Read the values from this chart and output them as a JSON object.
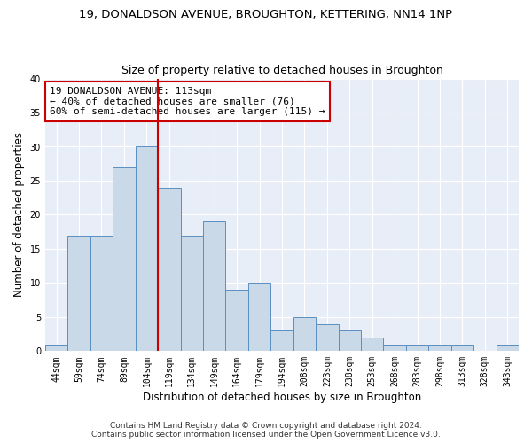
{
  "title": "19, DONALDSON AVENUE, BROUGHTON, KETTERING, NN14 1NP",
  "subtitle": "Size of property relative to detached houses in Broughton",
  "xlabel": "Distribution of detached houses by size in Broughton",
  "ylabel": "Number of detached properties",
  "categories": [
    "44sqm",
    "59sqm",
    "74sqm",
    "89sqm",
    "104sqm",
    "119sqm",
    "134sqm",
    "149sqm",
    "164sqm",
    "179sqm",
    "194sqm",
    "208sqm",
    "223sqm",
    "238sqm",
    "253sqm",
    "268sqm",
    "283sqm",
    "298sqm",
    "313sqm",
    "328sqm",
    "343sqm"
  ],
  "values": [
    1,
    17,
    17,
    27,
    30,
    24,
    17,
    19,
    9,
    10,
    3,
    5,
    4,
    3,
    2,
    1,
    1,
    1,
    1,
    0,
    1
  ],
  "bar_color": "#c9d9e8",
  "bar_edge_color": "#5a8fc2",
  "vline_color": "#cc0000",
  "vline_x_index": 4.5,
  "annotation_text": "19 DONALDSON AVENUE: 113sqm\n← 40% of detached houses are smaller (76)\n60% of semi-detached houses are larger (115) →",
  "annotation_box_facecolor": "#ffffff",
  "annotation_box_edgecolor": "#cc0000",
  "ylim": [
    0,
    40
  ],
  "yticks": [
    0,
    5,
    10,
    15,
    20,
    25,
    30,
    35,
    40
  ],
  "footer_text": "Contains HM Land Registry data © Crown copyright and database right 2024.\nContains public sector information licensed under the Open Government Licence v3.0.",
  "fig_facecolor": "#ffffff",
  "ax_facecolor": "#e8eef7",
  "grid_color": "#ffffff",
  "title_fontsize": 9.5,
  "subtitle_fontsize": 9,
  "axis_label_fontsize": 8.5,
  "tick_fontsize": 7,
  "annotation_fontsize": 8,
  "footer_fontsize": 6.5
}
